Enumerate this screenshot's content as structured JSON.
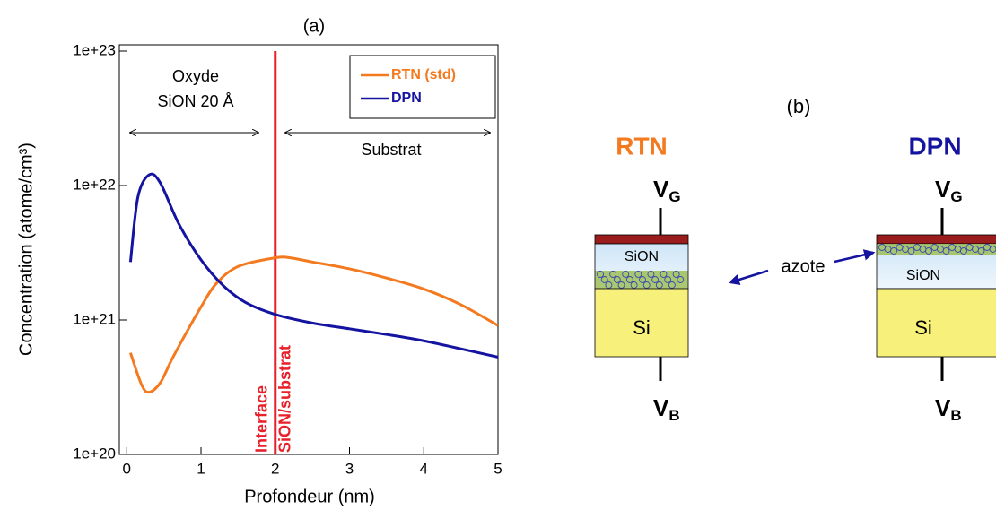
{
  "chart_data": {
    "type": "line",
    "title": "(a)",
    "x_label": "Profondeur (nm)",
    "y_label": "Concentration (atome/cm³)",
    "log_y": true,
    "xlim": [
      -0.1,
      5
    ],
    "xticks": [
      0,
      1,
      2,
      3,
      4,
      5
    ],
    "ylim": [
      1e+20,
      1e+23
    ],
    "yticks": [
      {
        "value": 1e+20,
        "label": "1e+20"
      },
      {
        "value": 1e+21,
        "label": "1e+21"
      },
      {
        "value": 1e+22,
        "label": "1e+22"
      },
      {
        "value": 1e+23,
        "label": "1e+23"
      }
    ],
    "legend": "upper right",
    "series": [
      {
        "name": "RTN (std)",
        "color": "#f47a20",
        "x": [
          0.05,
          0.2,
          0.3,
          0.45,
          0.6,
          0.8,
          1.0,
          1.2,
          1.5,
          2.0,
          2.2,
          2.5,
          3.0,
          3.5,
          4.0,
          4.5,
          5.0
        ],
        "values": [
          5.7e+20,
          3.3e+20,
          2.9e+20,
          3.4e+20,
          5e+20,
          8e+20,
          1.25e+21,
          1.85e+21,
          2.5e+21,
          2.9e+21,
          2.9e+21,
          2.7e+21,
          2.4e+21,
          2.05e+21,
          1.7e+21,
          1.3e+21,
          9.1e+20
        ]
      },
      {
        "name": "DPN",
        "color": "#1414a0",
        "x": [
          0.05,
          0.15,
          0.3,
          0.45,
          0.7,
          1.0,
          1.3,
          1.6,
          2.0,
          2.5,
          3.0,
          3.5,
          4.0,
          4.5,
          5.0
        ],
        "values": [
          2.7e+21,
          8.2e+21,
          1.2e+22,
          1.05e+22,
          5.2e+21,
          2.8e+21,
          1.8e+21,
          1.35e+21,
          1.1e+21,
          9.5e+20,
          8.6e+20,
          7.8e+20,
          7e+20,
          6.1e+20,
          5.3e+20
        ]
      }
    ],
    "markers": [
      {
        "x": 2,
        "color": "#e8202a",
        "label": [
          "Interface",
          "SiON/substrat"
        ]
      }
    ],
    "annotations": {
      "oxide": [
        "Oxyde",
        "SiON 20 Å"
      ],
      "substrate": "Substrat"
    }
  },
  "diagram": {
    "label": "(b)",
    "annotation": "azote",
    "devices": [
      {
        "title": "RTN",
        "color": "#f47a20",
        "gate": {
          "base": "V",
          "sub": "G"
        },
        "bulk": {
          "base": "V",
          "sub": "B"
        },
        "oxide": "SiON",
        "substrate": "Si"
      },
      {
        "title": "DPN",
        "color": "#1414a0",
        "gate": {
          "base": "V",
          "sub": "G"
        },
        "bulk": {
          "base": "V",
          "sub": "B"
        },
        "oxide": "SiON",
        "substrate": "Si"
      }
    ]
  }
}
